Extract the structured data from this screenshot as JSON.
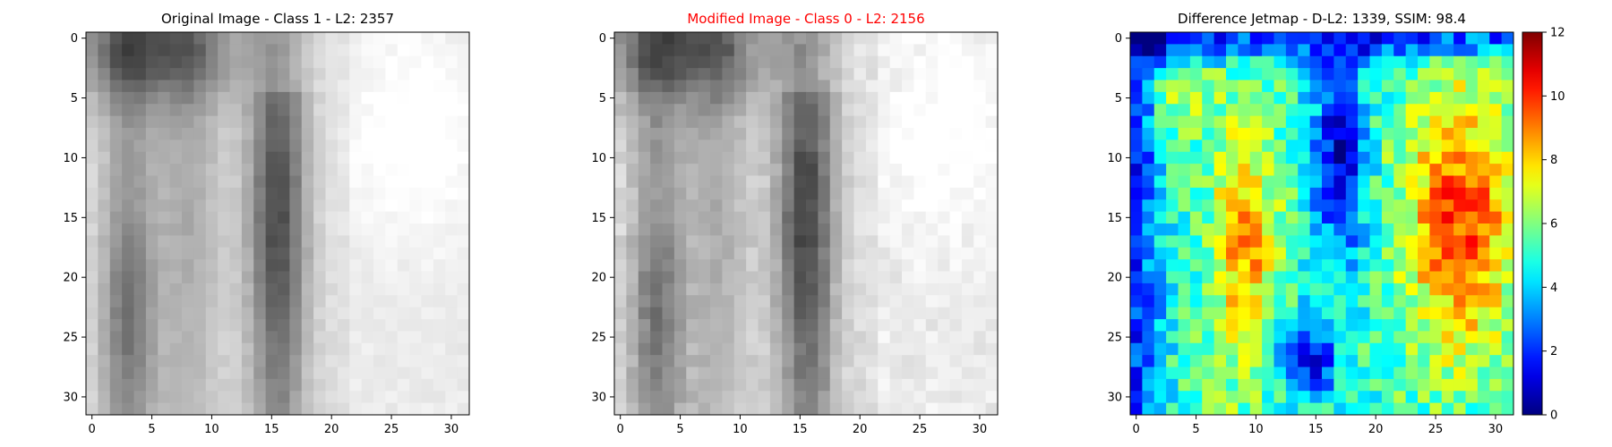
{
  "chart_data": [
    {
      "type": "heatmap",
      "title": "Original Image - Class 1 - L2: 2357",
      "title_color": "#000000",
      "colormap": "gray",
      "grid_size": [
        32,
        32
      ],
      "xticks": [
        0,
        5,
        10,
        15,
        20,
        25,
        30
      ],
      "yticks": [
        0,
        5,
        10,
        15,
        20,
        25,
        30
      ],
      "xlim": [
        -0.5,
        31.5
      ],
      "ylim": [
        31.5,
        -0.5
      ],
      "value_range": [
        0,
        255
      ],
      "description_of_values": "grayscale pixel intensities (0 = black, 255 = white)"
    },
    {
      "type": "heatmap",
      "title": "Modified Image - Class 0 - L2: 2156",
      "title_color": "#ff0000",
      "colormap": "gray",
      "grid_size": [
        32,
        32
      ],
      "xticks": [
        0,
        5,
        10,
        15,
        20,
        25,
        30
      ],
      "yticks": [
        0,
        5,
        10,
        15,
        20,
        25,
        30
      ],
      "xlim": [
        -0.5,
        31.5
      ],
      "ylim": [
        31.5,
        -0.5
      ],
      "value_range": [
        0,
        255
      ]
    },
    {
      "type": "heatmap",
      "title": "Difference Jetmap - D-L2: 1339, SSIM: 98.4",
      "title_color": "#000000",
      "colormap": "jet",
      "grid_size": [
        32,
        32
      ],
      "xticks": [
        0,
        5,
        10,
        15,
        20,
        25,
        30
      ],
      "yticks": [
        0,
        5,
        10,
        15,
        20,
        25,
        30
      ],
      "xlim": [
        -0.5,
        31.5
      ],
      "ylim": [
        31.5,
        -0.5
      ],
      "value_range": [
        0,
        12
      ],
      "colorbar_ticks": [
        0,
        2,
        4,
        6,
        8,
        10,
        12
      ]
    }
  ]
}
